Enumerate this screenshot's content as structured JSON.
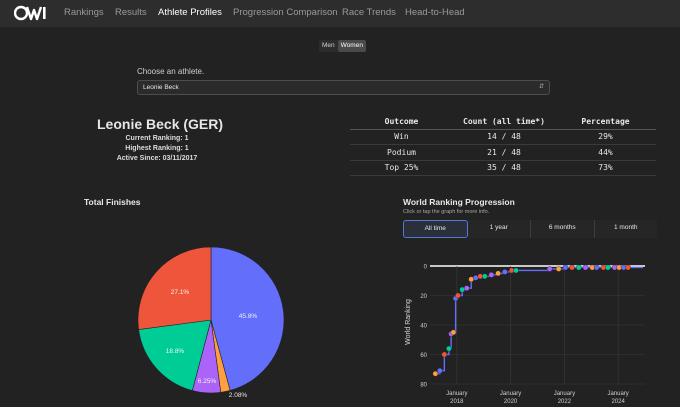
{
  "nav": {
    "logo_text": "OW",
    "items": [
      {
        "label": "Rankings",
        "active": false
      },
      {
        "label": "Results",
        "active": false
      },
      {
        "label": "Athlete Profiles",
        "active": true
      },
      {
        "label": "Progression Comparison",
        "active": false
      },
      {
        "label": "Race Trends",
        "active": false
      },
      {
        "label": "Head-to-Head",
        "active": false
      }
    ]
  },
  "gender_toggle": {
    "men": "Men",
    "women": "Women",
    "selected": "Women"
  },
  "athlete_select": {
    "label": "Choose an athlete.",
    "value": "Leonie Beck"
  },
  "athlete": {
    "name": "Leonie Beck (GER)",
    "current_ranking": "Current Ranking: 1",
    "highest_ranking": "Highest Ranking: 1",
    "active_since": "Active Since: 03/11/2017"
  },
  "stats_table": {
    "headers": [
      "Outcome",
      "Count (all time*)",
      "Percentage"
    ],
    "rows": [
      [
        "Win",
        "14 / 48",
        "29%"
      ],
      [
        "Podium",
        "21 / 48",
        "44%"
      ],
      [
        "Top 25%",
        "35 / 48",
        "73%"
      ]
    ]
  },
  "finishes": {
    "title": "Total Finishes",
    "colors": [
      "#636efa",
      "#ff9f40",
      "#ab63fa",
      "#00cc96",
      "#ef553b"
    ]
  },
  "ranking_chart": {
    "title": "World Ranking Progression",
    "subtitle": "Click or tap the graph for more info.",
    "range_buttons": [
      "All time",
      "1 year",
      "6 months",
      "1 month"
    ],
    "selected_range": "All time",
    "line_color": "#636efa"
  },
  "chart_data": [
    {
      "type": "pie",
      "title": "Total Finishes",
      "values": [
        45.8,
        2.08,
        6.25,
        18.8,
        27.1
      ],
      "labels_shown": [
        "45.8%",
        "2.08%",
        "6.25%",
        "18.8%",
        "27.1%"
      ]
    },
    {
      "type": "line",
      "title": "World Ranking Progression",
      "ylabel": "World Ranking",
      "ylim": [
        80,
        0
      ],
      "y_ticks": [
        "0",
        "20",
        "40",
        "60",
        "80"
      ],
      "x_ticks": [
        {
          "month": "January",
          "year": "2018"
        },
        {
          "month": "January",
          "year": "2020"
        },
        {
          "month": "January",
          "year": "2022"
        },
        {
          "month": "January",
          "year": "2024"
        }
      ],
      "series": [
        {
          "x": [
            "2017-03",
            "2017-05",
            "2017-07",
            "2017-09",
            "2017-10",
            "2017-11",
            "2017-12",
            "2018-01",
            "2018-03",
            "2018-05",
            "2018-07",
            "2018-09",
            "2018-11",
            "2019-01",
            "2019-04",
            "2019-07",
            "2019-10",
            "2020-01",
            "2020-03",
            "2021-06",
            "2021-10",
            "2022-01",
            "2022-04",
            "2022-07",
            "2022-10",
            "2023-01",
            "2023-03",
            "2023-06",
            "2023-08",
            "2023-11",
            "2024-01",
            "2024-03",
            "2024-05"
          ],
          "y": [
            73,
            71,
            60,
            56,
            46,
            45,
            22,
            20,
            16,
            15,
            9,
            8,
            7,
            7,
            6,
            5,
            4,
            3,
            3,
            2,
            2,
            1,
            1,
            1,
            1,
            1,
            1,
            1,
            1,
            1,
            1,
            1,
            1
          ]
        }
      ]
    }
  ]
}
